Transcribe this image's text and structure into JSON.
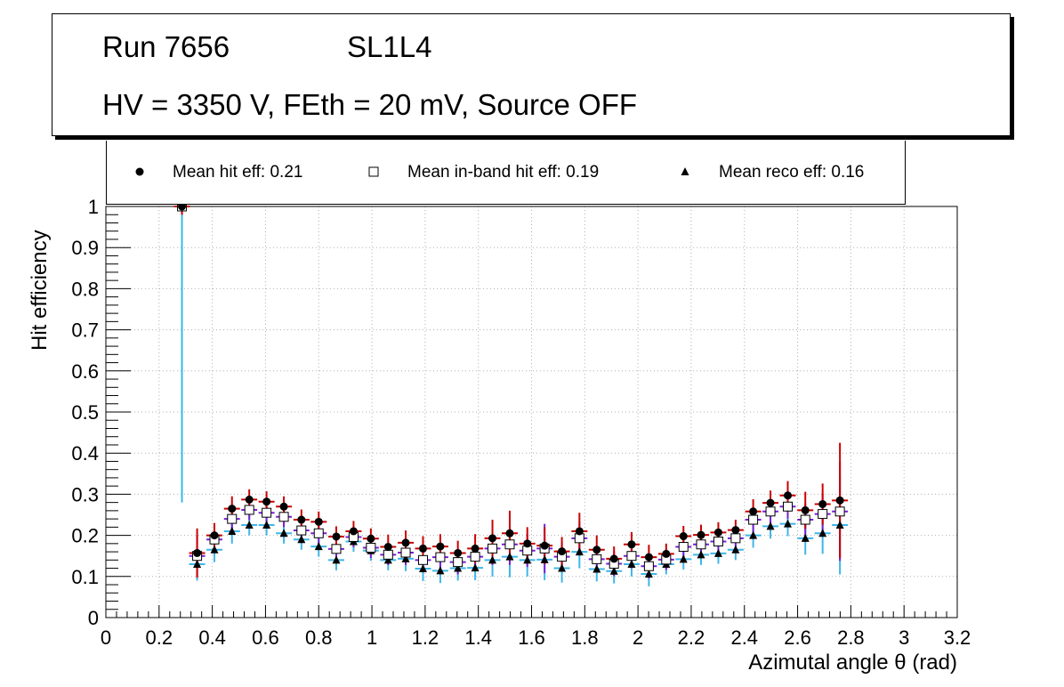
{
  "title": {
    "run_label": "Run 7656",
    "layer_label": "SL1L4",
    "conditions": "HV = 3350 V, FEth = 20 mV, Source OFF"
  },
  "legend": {
    "hit": "Mean hit  eff: 0.21",
    "inband": "Mean in-band hit eff: 0.19",
    "reco": "Mean reco eff: 0.16"
  },
  "colors": {
    "hit_err": "#cc0000",
    "inband_err": "#7a1fd6",
    "reco_err": "#3fb6e8",
    "grid": "#b0b0b0"
  },
  "chart_data": {
    "type": "scatter",
    "xlabel": "Azimutal angle θ (rad)",
    "ylabel": "Hit efficiency",
    "xlim": [
      0,
      3.2
    ],
    "ylim": [
      0,
      1
    ],
    "grid": true,
    "legend_position": "top",
    "xticks": [
      "0",
      "0.2",
      "0.4",
      "0.6",
      "0.8",
      "1",
      "1.2",
      "1.4",
      "1.6",
      "1.8",
      "2",
      "2.2",
      "2.4",
      "2.6",
      "2.8",
      "3",
      "3.2"
    ],
    "yticks": [
      "0",
      "0.1",
      "0.2",
      "0.3",
      "0.4",
      "0.5",
      "0.6",
      "0.7",
      "0.8",
      "0.9",
      "1"
    ],
    "x": [
      0.286,
      0.343,
      0.408,
      0.474,
      0.539,
      0.604,
      0.669,
      0.735,
      0.8,
      0.866,
      0.931,
      0.996,
      1.061,
      1.127,
      1.192,
      1.257,
      1.323,
      1.388,
      1.453,
      1.518,
      1.584,
      1.649,
      1.714,
      1.78,
      1.845,
      1.91,
      1.976,
      2.041,
      2.106,
      2.171,
      2.237,
      2.302,
      2.367,
      2.433,
      2.498,
      2.563,
      2.629,
      2.694,
      2.759
    ],
    "series": [
      {
        "name": "hit",
        "values": [
          1.0,
          0.157,
          0.2,
          0.265,
          0.287,
          0.282,
          0.27,
          0.238,
          0.233,
          0.197,
          0.21,
          0.192,
          0.172,
          0.182,
          0.168,
          0.173,
          0.157,
          0.168,
          0.193,
          0.205,
          0.18,
          0.175,
          0.161,
          0.21,
          0.165,
          0.143,
          0.178,
          0.147,
          0.155,
          0.198,
          0.201,
          0.207,
          0.213,
          0.258,
          0.279,
          0.297,
          0.261,
          0.276,
          0.285
        ],
        "errors": [
          0.02,
          0.06,
          0.03,
          0.03,
          0.025,
          0.025,
          0.025,
          0.025,
          0.025,
          0.025,
          0.025,
          0.025,
          0.03,
          0.03,
          0.03,
          0.03,
          0.03,
          0.035,
          0.045,
          0.055,
          0.04,
          0.045,
          0.035,
          0.045,
          0.035,
          0.03,
          0.03,
          0.03,
          0.025,
          0.025,
          0.025,
          0.025,
          0.025,
          0.03,
          0.03,
          0.035,
          0.045,
          0.05,
          0.14
        ]
      },
      {
        "name": "inband",
        "values": [
          1.0,
          0.15,
          0.19,
          0.24,
          0.262,
          0.255,
          0.245,
          0.212,
          0.205,
          0.167,
          0.196,
          0.17,
          0.153,
          0.158,
          0.14,
          0.147,
          0.135,
          0.148,
          0.168,
          0.178,
          0.163,
          0.168,
          0.148,
          0.193,
          0.142,
          0.131,
          0.15,
          0.125,
          0.141,
          0.172,
          0.178,
          0.185,
          0.193,
          0.238,
          0.258,
          0.27,
          0.238,
          0.252,
          0.258
        ],
        "errors": [
          0.02,
          0.05,
          0.03,
          0.03,
          0.025,
          0.025,
          0.025,
          0.025,
          0.025,
          0.025,
          0.025,
          0.025,
          0.025,
          0.03,
          0.03,
          0.03,
          0.03,
          0.03,
          0.04,
          0.05,
          0.04,
          0.06,
          0.035,
          0.04,
          0.03,
          0.03,
          0.03,
          0.03,
          0.025,
          0.025,
          0.025,
          0.025,
          0.025,
          0.03,
          0.03,
          0.03,
          0.04,
          0.05,
          0.12
        ]
      },
      {
        "name": "reco",
        "values": [
          1.0,
          0.13,
          0.165,
          0.21,
          0.225,
          0.225,
          0.205,
          0.19,
          0.173,
          0.14,
          0.185,
          0.163,
          0.14,
          0.143,
          0.119,
          0.114,
          0.12,
          0.121,
          0.14,
          0.148,
          0.14,
          0.141,
          0.12,
          0.16,
          0.118,
          0.113,
          0.13,
          0.106,
          0.13,
          0.142,
          0.153,
          0.156,
          0.165,
          0.2,
          0.222,
          0.228,
          0.193,
          0.205,
          0.225
        ],
        "errors": [
          0.72,
          0.04,
          0.03,
          0.03,
          0.025,
          0.025,
          0.025,
          0.025,
          0.025,
          0.025,
          0.025,
          0.025,
          0.025,
          0.03,
          0.03,
          0.03,
          0.03,
          0.03,
          0.04,
          0.05,
          0.04,
          0.05,
          0.035,
          0.04,
          0.03,
          0.03,
          0.03,
          0.03,
          0.025,
          0.025,
          0.025,
          0.025,
          0.025,
          0.03,
          0.03,
          0.03,
          0.04,
          0.05,
          0.12
        ]
      }
    ]
  }
}
